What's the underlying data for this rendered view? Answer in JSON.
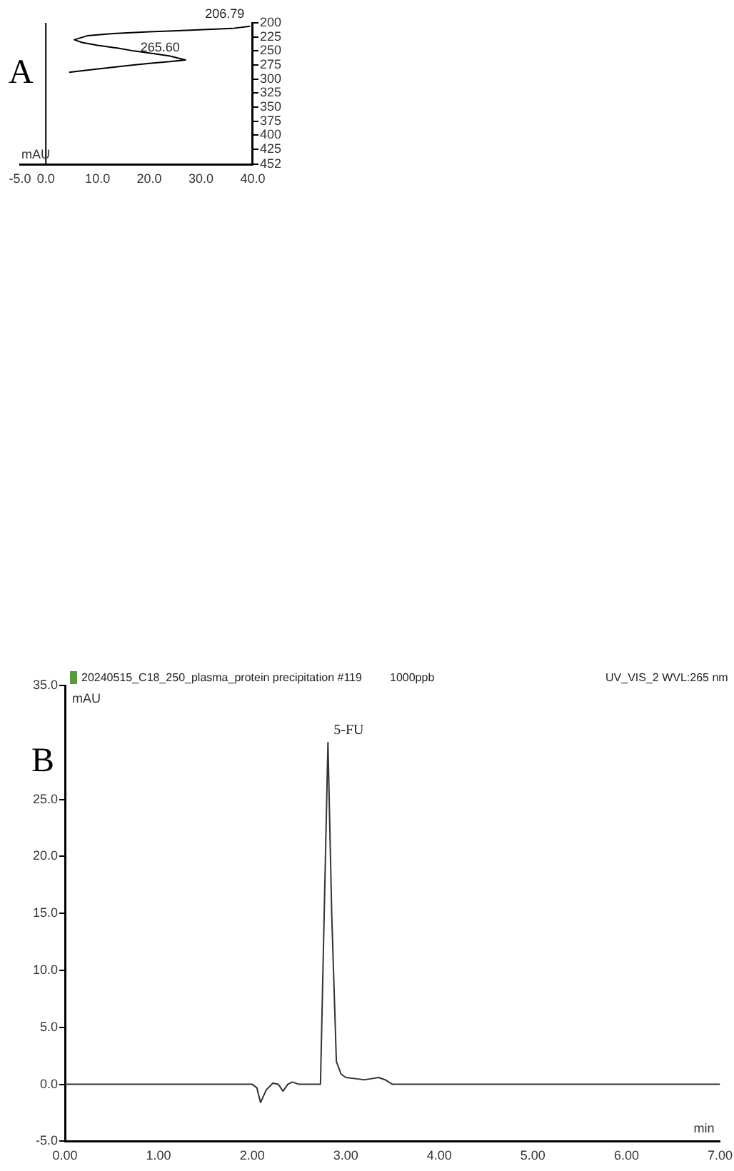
{
  "chart_data": [
    {
      "type": "line",
      "xlabel": "mAU",
      "x": [
        39.5,
        36,
        28,
        20,
        13,
        8,
        5.5,
        7,
        10,
        14,
        17,
        21,
        24,
        27,
        24,
        20,
        16,
        12,
        8,
        4.5
      ],
      "series": [
        {
          "color": "#000000",
          "values": [
            206,
            210,
            213,
            216,
            219,
            223,
            230,
            235,
            240,
            245,
            250,
            255,
            259,
            266,
            269,
            272,
            276,
            280,
            284,
            288
          ]
        }
      ],
      "xlim": [
        -5,
        40
      ],
      "xticks": [
        {
          "value": -5,
          "label": "-5.0"
        },
        {
          "value": 0,
          "label": "0.0"
        },
        {
          "value": 10,
          "label": "10.0"
        },
        {
          "value": 20,
          "label": "20.0"
        },
        {
          "value": 30,
          "label": "30.0"
        },
        {
          "value": 40,
          "label": "40.0"
        }
      ],
      "ylim": [
        452,
        200
      ],
      "yticks": [
        200,
        225,
        250,
        275,
        300,
        325,
        350,
        375,
        400,
        425,
        452
      ],
      "ref_lines": [
        {
          "axis": "x",
          "value": 0,
          "color": "#000000"
        }
      ],
      "annotations": [
        "A",
        {
          "text": "206.79",
          "x": 39.5,
          "y": 206
        },
        {
          "text": "265.60",
          "x": 27,
          "y": 266
        }
      ],
      "grid": false,
      "legend": false,
      "marker": "none",
      "line_style": "solid"
    },
    {
      "type": "line",
      "xlabel": "min",
      "ylabel": "mAU",
      "x": [
        0,
        1,
        2,
        2.05,
        2.09,
        2.15,
        2.22,
        2.28,
        2.33,
        2.38,
        2.43,
        2.5,
        2.6,
        2.73,
        2.77,
        2.81,
        2.85,
        2.9,
        2.95,
        3.0,
        3.1,
        3.2,
        3.28,
        3.35,
        3.42,
        3.5,
        4,
        5,
        6,
        7
      ],
      "series": [
        {
          "color": "#333333",
          "values": [
            0,
            0,
            0,
            -0.3,
            -1.6,
            -0.5,
            0.1,
            0,
            -0.6,
            0,
            0.2,
            0,
            0,
            0,
            15,
            30,
            15,
            2,
            0.9,
            0.6,
            0.5,
            0.4,
            0.5,
            0.6,
            0.4,
            0,
            0,
            0,
            0,
            0
          ]
        }
      ],
      "xlim": [
        0,
        7
      ],
      "xticks": [
        {
          "value": 0,
          "label": "0.00"
        },
        {
          "value": 1,
          "label": "1.00"
        },
        {
          "value": 2,
          "label": "2.00"
        },
        {
          "value": 3,
          "label": "3.00"
        },
        {
          "value": 4,
          "label": "4.00"
        },
        {
          "value": 5,
          "label": "5.00"
        },
        {
          "value": 6,
          "label": "6.00"
        },
        {
          "value": 7,
          "label": "7.00"
        }
      ],
      "ylim": [
        -5,
        35
      ],
      "yticks": [
        {
          "value": -5,
          "label": "-5.0"
        },
        {
          "value": 0,
          "label": "0.0"
        },
        {
          "value": 5,
          "label": "5.0"
        },
        {
          "value": 10,
          "label": "10.0"
        },
        {
          "value": 15,
          "label": "15.0"
        },
        {
          "value": 20,
          "label": "20.0"
        },
        {
          "value": 25,
          "label": "25.0"
        },
        {
          "value": 35,
          "label": "35.0"
        }
      ],
      "annotations": [
        "B",
        "20240515_C18_250_plasma_protein precipitation #119",
        "1000ppb",
        "UV_VIS_2 WVL:265 nm",
        {
          "text": "5-FU",
          "x": 2.81,
          "y": 30
        }
      ],
      "grid": false,
      "legend": false,
      "marker": "none",
      "line_style": "solid"
    }
  ]
}
